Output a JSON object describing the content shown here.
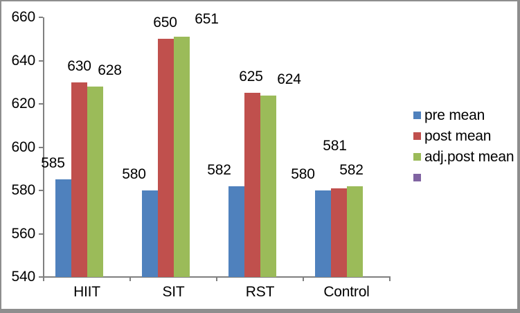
{
  "chart_data": {
    "type": "bar",
    "title": "",
    "xlabel": "",
    "ylabel": "",
    "categories": [
      "HIIT",
      "SIT",
      "RST",
      "Control"
    ],
    "series": [
      {
        "name": "pre mean",
        "color": "#4F81BD",
        "values": [
          585,
          580,
          582,
          580
        ]
      },
      {
        "name": "post mean",
        "color": "#C0504D",
        "values": [
          630,
          650,
          625,
          581
        ]
      },
      {
        "name": "adj.post mean",
        "color": "#9BBB59",
        "values": [
          628,
          651,
          624,
          582
        ]
      },
      {
        "name": "",
        "color": "#8064A2",
        "values": [
          null,
          null,
          null,
          null
        ]
      }
    ],
    "ylim": [
      540,
      660
    ],
    "yticks": [
      660,
      640,
      620,
      600,
      580,
      560,
      540
    ],
    "grid": false,
    "data_labels": "outside-end",
    "legend_position": "right",
    "axis_color": "#7f7f7f",
    "text_color": "#000000",
    "frame_border_color": "#8e8e8e"
  }
}
